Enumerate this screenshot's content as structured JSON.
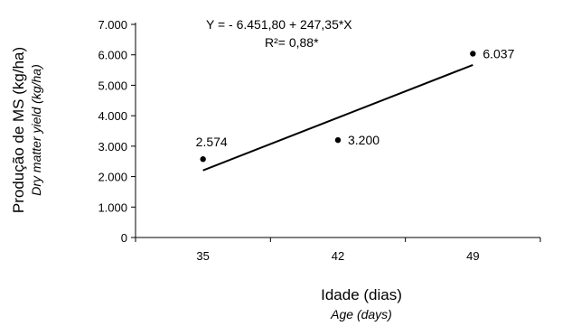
{
  "chart_data": {
    "type": "scatter",
    "x": [
      35,
      42,
      49
    ],
    "y": [
      2574,
      3200,
      6037
    ],
    "point_labels": [
      "2.574",
      "3.200",
      "6.037"
    ],
    "xticks": [
      "35",
      "42",
      "49"
    ],
    "yticks": [
      "0",
      "1.000",
      "2.000",
      "3.000",
      "4.000",
      "5.000",
      "6.000",
      "7.000"
    ],
    "ytick_values": [
      0,
      1000,
      2000,
      3000,
      4000,
      5000,
      6000,
      7000
    ],
    "xlim": [
      31.5,
      52.5
    ],
    "ylim": [
      0,
      7000
    ],
    "xlabel": "Idade (dias)",
    "xlabel_secondary": "Age (days)",
    "ylabel": "Produção de MS (kg/ha)",
    "ylabel_secondary": "Dry matter yield (kg/ha)",
    "equation": "Y = - 6.451,80 + 247,35*X",
    "r_squared": "R²= 0,88*",
    "trendline": {
      "intercept": -6451.8,
      "slope": 247.35
    },
    "grid": false,
    "legend": "none"
  },
  "colors": {
    "marks": "#000000",
    "background": "#ffffff"
  }
}
